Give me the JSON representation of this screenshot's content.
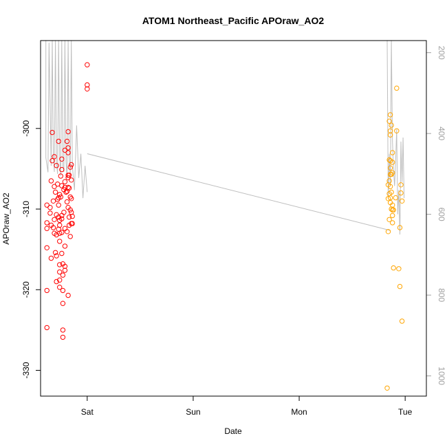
{
  "chart_data": {
    "type": "scatter",
    "title": "ATOM1 Northeast_Pacific APOraw_AO2",
    "xlabel": "Date",
    "ylabel": "APOraw_AO2",
    "x_unit": "days",
    "x_ticks": [
      {
        "value": 0,
        "label": "Sat"
      },
      {
        "value": 1,
        "label": "Sun"
      },
      {
        "value": 2,
        "label": "Mon"
      },
      {
        "value": 3,
        "label": "Tue"
      }
    ],
    "xlim": [
      -0.44,
      3.2
    ],
    "ylim": [
      -333.2,
      -289.1
    ],
    "y_ticks": [
      -330,
      -320,
      -310,
      -300
    ],
    "y2lim": [
      1050,
      170
    ],
    "y2_ticks": [
      200,
      400,
      600,
      800,
      1000
    ],
    "grid": false,
    "colors": {
      "series1": "#ff0000",
      "series2": "#ffa500",
      "line": "#bebebe",
      "axis": "#000000",
      "axis_right": "#a0a0a0"
    },
    "series": [
      {
        "color": "#ff0000",
        "points": [
          [
            -0.38,
            -309.5
          ],
          [
            -0.38,
            -311.7
          ],
          [
            -0.38,
            -312.4
          ],
          [
            -0.38,
            -314.8
          ],
          [
            -0.38,
            -320.1
          ],
          [
            -0.38,
            -324.7
          ],
          [
            -0.35,
            -309.8
          ],
          [
            -0.35,
            -310.5
          ],
          [
            -0.34,
            -306.5
          ],
          [
            -0.34,
            -312.0
          ],
          [
            -0.34,
            -316.1
          ],
          [
            -0.33,
            -304.0
          ],
          [
            -0.33,
            -300.5
          ],
          [
            -0.32,
            -309.0
          ],
          [
            -0.32,
            -312.3
          ],
          [
            -0.31,
            -303.5
          ],
          [
            -0.31,
            -307.2
          ],
          [
            -0.31,
            -311.3
          ],
          [
            -0.31,
            -313.0
          ],
          [
            -0.3,
            -307.9
          ],
          [
            -0.3,
            -315.4
          ],
          [
            -0.29,
            -304.6
          ],
          [
            -0.29,
            -319.0
          ],
          [
            -0.29,
            -310.7
          ],
          [
            -0.29,
            -313.2
          ],
          [
            -0.29,
            -315.8
          ],
          [
            -0.28,
            -306.9
          ],
          [
            -0.28,
            -308.8
          ],
          [
            -0.27,
            -301.6
          ],
          [
            -0.27,
            -308.6
          ],
          [
            -0.27,
            -311.0
          ],
          [
            -0.27,
            -312.5
          ],
          [
            -0.27,
            -309.5
          ],
          [
            -0.26,
            -308.2
          ],
          [
            -0.26,
            -311.4
          ],
          [
            -0.26,
            -312.0
          ],
          [
            -0.26,
            -313.0
          ],
          [
            -0.26,
            -314.0
          ],
          [
            -0.26,
            -316.9
          ],
          [
            -0.26,
            -317.8
          ],
          [
            -0.26,
            -319.7
          ],
          [
            -0.26,
            -318.8
          ],
          [
            -0.25,
            -305.9
          ],
          [
            -0.25,
            -308.5
          ],
          [
            -0.24,
            -303.8
          ],
          [
            -0.24,
            -305.1
          ],
          [
            -0.24,
            -307.1
          ],
          [
            -0.24,
            -310.8
          ],
          [
            -0.24,
            -311.2
          ],
          [
            -0.24,
            -312.9
          ],
          [
            -0.24,
            -315.5
          ],
          [
            -0.23,
            -325.0
          ],
          [
            -0.23,
            -325.9
          ],
          [
            -0.23,
            -321.7
          ],
          [
            -0.23,
            -318.2
          ],
          [
            -0.23,
            -320.1
          ],
          [
            -0.23,
            -316.8
          ],
          [
            -0.22,
            -307.6
          ],
          [
            -0.22,
            -310.4
          ],
          [
            -0.21,
            -302.7
          ],
          [
            -0.21,
            -306.6
          ],
          [
            -0.21,
            -307.3
          ],
          [
            -0.21,
            -312.4
          ],
          [
            -0.21,
            -314.6
          ],
          [
            -0.21,
            -317.1
          ],
          [
            -0.21,
            -317.6
          ],
          [
            -0.2,
            -307.9
          ],
          [
            -0.19,
            -301.6
          ],
          [
            -0.19,
            -309.1
          ],
          [
            -0.19,
            -312.8
          ],
          [
            -0.19,
            -307.8
          ],
          [
            -0.18,
            -300.4
          ],
          [
            -0.18,
            -302.4
          ],
          [
            -0.18,
            -303.0
          ],
          [
            -0.18,
            -305.8
          ],
          [
            -0.18,
            -306.1
          ],
          [
            -0.18,
            -307.3
          ],
          [
            -0.18,
            -309.8
          ],
          [
            -0.18,
            -320.7
          ],
          [
            -0.17,
            -305.8
          ],
          [
            -0.17,
            -307.4
          ],
          [
            -0.17,
            -311.0
          ],
          [
            -0.17,
            -312.0
          ],
          [
            -0.16,
            -304.8
          ],
          [
            -0.16,
            -308.5
          ],
          [
            -0.16,
            -310.1
          ],
          [
            -0.16,
            -313.4
          ],
          [
            -0.15,
            -304.5
          ],
          [
            -0.15,
            -306.4
          ],
          [
            -0.15,
            -310.4
          ],
          [
            -0.15,
            -311.8
          ],
          [
            -0.15,
            -308.7
          ],
          [
            -0.14,
            -310.9
          ],
          [
            -0.14,
            -311.8
          ],
          [
            0.0,
            -292.1
          ],
          [
            0.0,
            -294.6
          ],
          [
            0.0,
            -295.1
          ]
        ]
      },
      {
        "color": "#ffa500",
        "points": [
          [
            2.83,
            -332.2
          ],
          [
            2.84,
            -307.0
          ],
          [
            2.84,
            -308.7
          ],
          [
            2.84,
            -312.8
          ],
          [
            2.85,
            -299.1
          ],
          [
            2.85,
            -303.9
          ],
          [
            2.85,
            -306.5
          ],
          [
            2.85,
            -308.1
          ],
          [
            2.85,
            -311.3
          ],
          [
            2.86,
            -298.3
          ],
          [
            2.86,
            -300.3
          ],
          [
            2.86,
            -300.8
          ],
          [
            2.86,
            -304.0
          ],
          [
            2.86,
            -304.9
          ],
          [
            2.86,
            -305.7
          ],
          [
            2.86,
            -307.2
          ],
          [
            2.86,
            -308.6
          ],
          [
            2.86,
            -309.2
          ],
          [
            2.87,
            -299.6
          ],
          [
            2.87,
            -305.7
          ],
          [
            2.87,
            -307.9
          ],
          [
            2.87,
            -310.0
          ],
          [
            2.88,
            -303.0
          ],
          [
            2.88,
            -304.2
          ],
          [
            2.88,
            -305.5
          ],
          [
            2.88,
            -309.5
          ],
          [
            2.88,
            -310.1
          ],
          [
            2.88,
            -310.8
          ],
          [
            2.88,
            -311.7
          ],
          [
            2.89,
            -310.1
          ],
          [
            2.89,
            -317.3
          ],
          [
            2.91,
            -308.6
          ],
          [
            2.92,
            -295.0
          ],
          [
            2.92,
            -300.3
          ],
          [
            2.94,
            -317.4
          ],
          [
            2.95,
            -319.6
          ],
          [
            2.95,
            -312.3
          ],
          [
            2.96,
            -307.0
          ],
          [
            2.96,
            -308.0
          ],
          [
            2.97,
            -309.0
          ],
          [
            2.97,
            -323.9
          ]
        ]
      }
    ],
    "line_segments": [
      [
        [
          -0.39,
          169
        ],
        [
          -0.39,
          460
        ],
        [
          -0.37,
          496
        ],
        [
          -0.36,
          175
        ],
        [
          -0.34,
          480
        ],
        [
          -0.33,
          169
        ],
        [
          -0.32,
          450
        ],
        [
          -0.31,
          495
        ],
        [
          -0.3,
          169
        ],
        [
          -0.29,
          470
        ],
        [
          -0.28,
          500
        ],
        [
          -0.27,
          169
        ],
        [
          -0.26,
          455
        ],
        [
          -0.25,
          505
        ],
        [
          -0.24,
          169
        ],
        [
          -0.23,
          480
        ],
        [
          -0.22,
          495
        ],
        [
          -0.21,
          169
        ],
        [
          -0.2,
          470
        ],
        [
          -0.19,
          510
        ],
        [
          -0.18,
          169
        ],
        [
          -0.17,
          460
        ],
        [
          -0.16,
          500
        ],
        [
          -0.15,
          169
        ],
        [
          -0.14,
          480
        ],
        [
          -0.12,
          540
        ],
        [
          -0.1,
          380
        ],
        [
          -0.08,
          510
        ],
        [
          -0.06,
          450
        ],
        [
          -0.04,
          560
        ],
        [
          -0.02,
          480
        ],
        [
          0.0,
          545
        ]
      ],
      [
        [
          0.0,
          450
        ],
        [
          2.86,
          640
        ]
      ],
      [
        [
          2.83,
          169
        ],
        [
          2.84,
          560
        ],
        [
          2.85,
          450
        ],
        [
          2.86,
          530
        ],
        [
          2.87,
          169
        ],
        [
          2.88,
          420
        ],
        [
          2.89,
          490
        ],
        [
          2.9,
          530
        ],
        [
          2.91,
          470
        ],
        [
          2.92,
          390
        ],
        [
          2.93,
          600
        ],
        [
          2.94,
          540
        ],
        [
          2.95,
          650
        ],
        [
          2.96,
          420
        ],
        [
          2.97,
          520
        ],
        [
          2.98,
          410
        ],
        [
          2.99,
          560
        ]
      ]
    ]
  }
}
